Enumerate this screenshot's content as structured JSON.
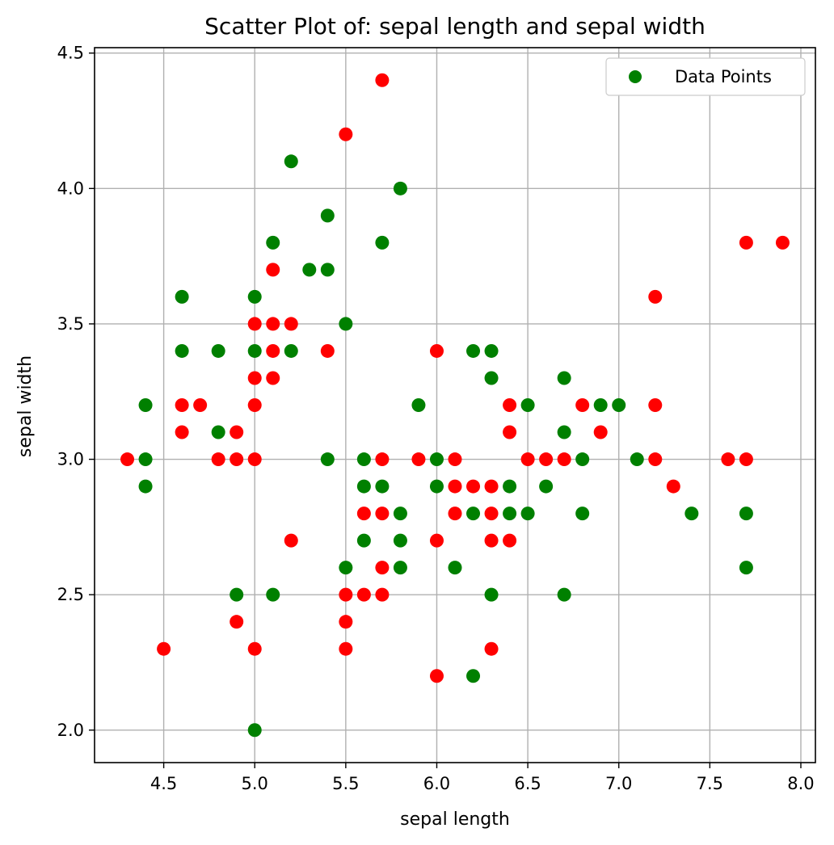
{
  "chart_data": {
    "type": "scatter",
    "title": "Scatter Plot of: sepal length and sepal width",
    "xlabel": "sepal length",
    "ylabel": "sepal width",
    "xlim": [
      4.12,
      8.08
    ],
    "ylim": [
      1.88,
      4.52
    ],
    "xticks": [
      "4.5",
      "5.0",
      "5.5",
      "6.0",
      "6.5",
      "7.0",
      "7.5",
      "8.0"
    ],
    "yticks": [
      "2.0",
      "2.5",
      "3.0",
      "3.5",
      "4.0",
      "4.5"
    ],
    "grid": true,
    "legend": {
      "position": "top-right",
      "entries": [
        {
          "label": "Data Points",
          "color": "#008000"
        }
      ]
    },
    "colors": {
      "green": "#008000",
      "red": "#ff0000"
    },
    "series": [
      {
        "color": "#008000",
        "points": [
          [
            4.4,
            3.2
          ],
          [
            4.4,
            3.0
          ],
          [
            4.4,
            2.9
          ],
          [
            4.6,
            3.6
          ],
          [
            4.6,
            3.4
          ],
          [
            4.8,
            3.4
          ],
          [
            4.8,
            3.1
          ],
          [
            4.9,
            2.5
          ],
          [
            5.0,
            3.6
          ],
          [
            5.0,
            3.4
          ],
          [
            5.0,
            2.0
          ],
          [
            5.1,
            3.8
          ],
          [
            5.1,
            2.5
          ],
          [
            5.2,
            4.1
          ],
          [
            5.2,
            3.4
          ],
          [
            5.3,
            3.7
          ],
          [
            5.4,
            3.9
          ],
          [
            5.4,
            3.7
          ],
          [
            5.4,
            3.0
          ],
          [
            5.5,
            3.5
          ],
          [
            5.5,
            2.6
          ],
          [
            5.6,
            3.0
          ],
          [
            5.6,
            2.9
          ],
          [
            5.6,
            2.7
          ],
          [
            5.7,
            3.8
          ],
          [
            5.7,
            2.9
          ],
          [
            5.8,
            4.0
          ],
          [
            5.8,
            2.8
          ],
          [
            5.8,
            2.7
          ],
          [
            5.8,
            2.6
          ],
          [
            5.9,
            3.2
          ],
          [
            6.0,
            3.0
          ],
          [
            6.0,
            2.9
          ],
          [
            6.1,
            2.6
          ],
          [
            6.2,
            3.4
          ],
          [
            6.2,
            2.8
          ],
          [
            6.2,
            2.2
          ],
          [
            6.3,
            3.4
          ],
          [
            6.3,
            3.3
          ],
          [
            6.3,
            2.5
          ],
          [
            6.4,
            2.9
          ],
          [
            6.4,
            2.8
          ],
          [
            6.5,
            3.2
          ],
          [
            6.5,
            2.8
          ],
          [
            6.6,
            2.9
          ],
          [
            6.7,
            3.3
          ],
          [
            6.7,
            3.1
          ],
          [
            6.7,
            2.5
          ],
          [
            6.8,
            3.0
          ],
          [
            6.8,
            2.8
          ],
          [
            6.9,
            3.2
          ],
          [
            7.0,
            3.2
          ],
          [
            7.1,
            3.0
          ],
          [
            7.4,
            2.8
          ],
          [
            7.7,
            2.8
          ],
          [
            7.7,
            2.6
          ]
        ]
      },
      {
        "color": "#ff0000",
        "points": [
          [
            4.3,
            3.0
          ],
          [
            4.5,
            2.3
          ],
          [
            4.6,
            3.2
          ],
          [
            4.6,
            3.1
          ],
          [
            4.7,
            3.2
          ],
          [
            4.8,
            3.0
          ],
          [
            4.9,
            3.1
          ],
          [
            4.9,
            3.0
          ],
          [
            4.9,
            2.4
          ],
          [
            5.0,
            3.5
          ],
          [
            5.0,
            3.3
          ],
          [
            5.0,
            3.2
          ],
          [
            5.0,
            3.0
          ],
          [
            5.0,
            2.3
          ],
          [
            5.1,
            3.7
          ],
          [
            5.1,
            3.5
          ],
          [
            5.1,
            3.4
          ],
          [
            5.1,
            3.3
          ],
          [
            5.2,
            3.5
          ],
          [
            5.2,
            2.7
          ],
          [
            5.4,
            3.4
          ],
          [
            5.5,
            4.2
          ],
          [
            5.5,
            2.5
          ],
          [
            5.5,
            2.4
          ],
          [
            5.5,
            2.3
          ],
          [
            5.6,
            2.8
          ],
          [
            5.6,
            2.5
          ],
          [
            5.7,
            4.4
          ],
          [
            5.7,
            3.0
          ],
          [
            5.7,
            2.8
          ],
          [
            5.7,
            2.6
          ],
          [
            5.7,
            2.5
          ],
          [
            5.9,
            3.0
          ],
          [
            6.0,
            3.4
          ],
          [
            6.0,
            2.7
          ],
          [
            6.0,
            2.2
          ],
          [
            6.1,
            3.0
          ],
          [
            6.1,
            2.9
          ],
          [
            6.1,
            2.8
          ],
          [
            6.2,
            2.9
          ],
          [
            6.3,
            2.9
          ],
          [
            6.3,
            2.8
          ],
          [
            6.3,
            2.7
          ],
          [
            6.3,
            2.3
          ],
          [
            6.4,
            3.2
          ],
          [
            6.4,
            3.1
          ],
          [
            6.4,
            2.7
          ],
          [
            6.5,
            3.0
          ],
          [
            6.6,
            3.0
          ],
          [
            6.7,
            3.0
          ],
          [
            6.8,
            3.2
          ],
          [
            6.9,
            3.1
          ],
          [
            7.2,
            3.6
          ],
          [
            7.2,
            3.2
          ],
          [
            7.2,
            3.0
          ],
          [
            7.3,
            2.9
          ],
          [
            7.6,
            3.0
          ],
          [
            7.7,
            3.8
          ],
          [
            7.7,
            3.0
          ],
          [
            7.9,
            3.8
          ]
        ]
      }
    ]
  }
}
